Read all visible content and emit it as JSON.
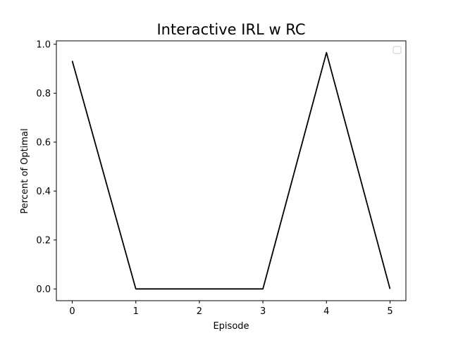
{
  "chart_data": {
    "type": "line",
    "title": "Interactive IRL w RC",
    "xlabel": "Episode",
    "ylabel": "Percent of Optimal",
    "x": [
      0,
      1,
      2,
      3,
      4,
      5
    ],
    "series": [
      {
        "values": [
          0.932,
          0.0,
          0.0,
          0.0,
          0.966,
          0.0
        ],
        "color": "#000000"
      }
    ],
    "xlim": [
      -0.25,
      5.25
    ],
    "ylim": [
      -0.048,
      1.014
    ],
    "xticks": [
      0,
      1,
      2,
      3,
      4,
      5
    ],
    "xtick_labels": [
      "0",
      "1",
      "2",
      "3",
      "4",
      "5"
    ],
    "yticks": [
      0.0,
      0.2,
      0.4,
      0.6,
      0.8,
      1.0
    ],
    "ytick_labels": [
      "0.0",
      "0.2",
      "0.4",
      "0.6",
      "0.8",
      "1.0"
    ],
    "grid": false,
    "legend": {
      "position": "top-right",
      "entries": []
    }
  }
}
